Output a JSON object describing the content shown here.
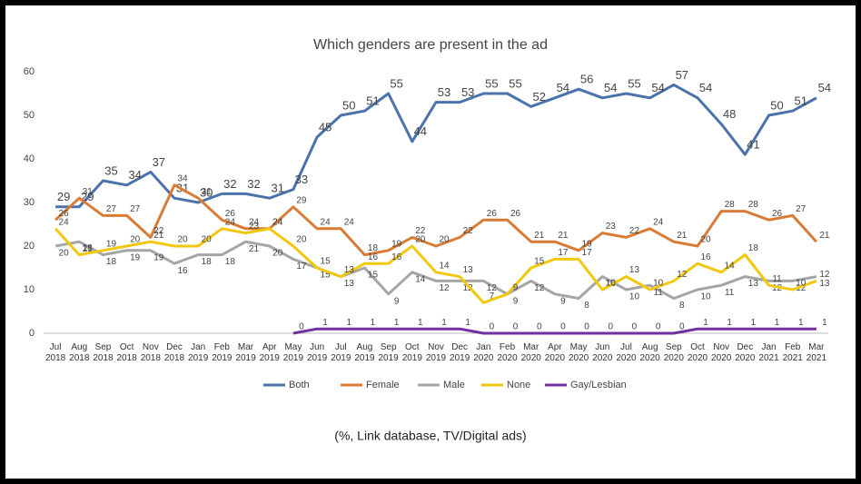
{
  "chart_data": {
    "type": "line",
    "title": "Which genders are present in the ad",
    "annotation": "(%, Link database, TV/Digital ads)",
    "categories": [
      "Jul 2018",
      "Aug 2018",
      "Sep 2018",
      "Oct 2018",
      "Nov 2018",
      "Dec 2018",
      "Jan 2019",
      "Feb 2019",
      "Mar 2019",
      "Apr 2019",
      "May 2019",
      "Jun 2019",
      "Jul 2019",
      "Aug 2019",
      "Sep 2019",
      "Oct 2019",
      "Nov 2019",
      "Dec 2019",
      "Jan 2020",
      "Feb 2020",
      "Mar 2020",
      "Apr 2020",
      "May 2020",
      "Jun 2020",
      "Jul 2020",
      "Aug 2020",
      "Sep 2020",
      "Oct 2020",
      "Nov 2020",
      "Dec 2020",
      "Jan 2021",
      "Feb 2021",
      "Mar 2021"
    ],
    "series": [
      {
        "name": "Both",
        "color": "#4a72ad",
        "values": [
          29,
          29,
          35,
          34,
          37,
          31,
          30,
          32,
          32,
          31,
          33,
          45,
          50,
          51,
          55,
          44,
          53,
          53,
          55,
          55,
          52,
          54,
          56,
          54,
          55,
          54,
          57,
          54,
          48,
          41,
          50,
          51,
          54
        ]
      },
      {
        "name": "Female",
        "color": "#d97b35",
        "values": [
          26,
          31,
          27,
          27,
          22,
          34,
          31,
          26,
          24,
          24,
          29,
          24,
          24,
          18,
          19,
          22,
          20,
          22,
          26,
          26,
          21,
          21,
          19,
          23,
          22,
          24,
          21,
          20,
          28,
          28,
          26,
          27,
          21
        ]
      },
      {
        "name": "Male",
        "color": "#a5a5a5",
        "values": [
          20,
          21,
          18,
          19,
          19,
          16,
          18,
          18,
          21,
          20,
          17,
          15,
          13,
          15,
          9,
          14,
          12,
          12,
          12,
          9,
          12,
          9,
          8,
          13,
          10,
          11,
          8,
          10,
          11,
          13,
          12,
          12,
          13
        ]
      },
      {
        "name": "None",
        "color": "#f2c80f",
        "values": [
          24,
          18,
          19,
          20,
          21,
          20,
          20,
          24,
          23,
          24,
          20,
          15,
          13,
          16,
          16,
          20,
          14,
          13,
          7,
          9,
          15,
          17,
          17,
          10,
          13,
          10,
          12,
          16,
          14,
          18,
          11,
          10,
          12
        ]
      },
      {
        "name": "Gay/Lesbian",
        "color": "#7030a0",
        "values": [
          null,
          null,
          null,
          null,
          null,
          null,
          null,
          null,
          null,
          null,
          0,
          1,
          1,
          1,
          1,
          1,
          1,
          1,
          0,
          0,
          0,
          0,
          0,
          0,
          0,
          0,
          0,
          1,
          1,
          1,
          1,
          1,
          1
        ]
      }
    ],
    "ylim": [
      0,
      60
    ],
    "yticks": [
      0,
      10,
      20,
      30,
      40,
      50,
      60
    ],
    "grid": false,
    "legend": "bottom"
  }
}
